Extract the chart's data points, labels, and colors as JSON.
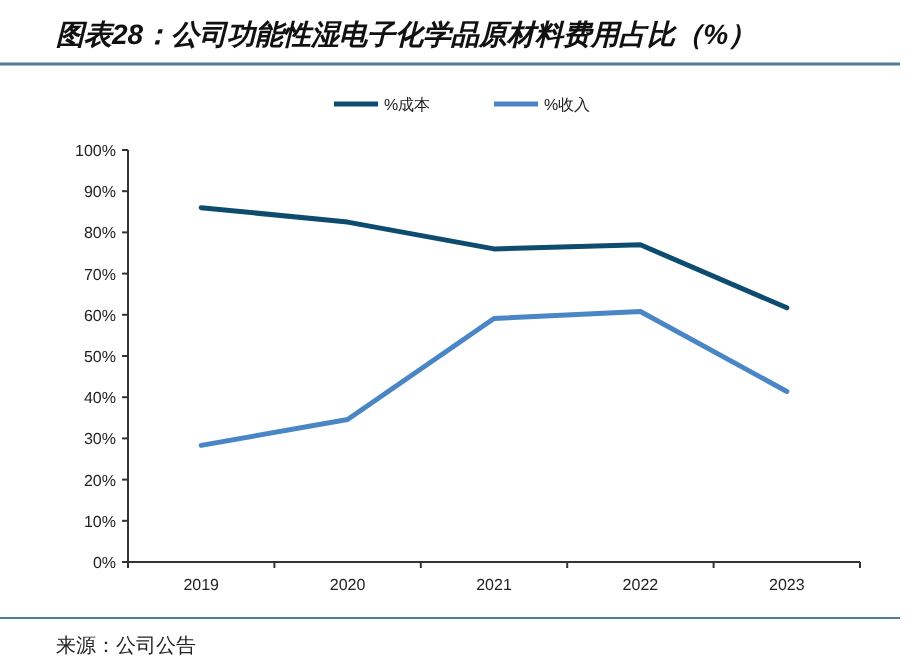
{
  "chart_data": {
    "type": "line",
    "title": "图表28：公司功能性湿电子化学品原材料费用占比（%）",
    "annotations": [
      "来源：公司公告"
    ],
    "categories": [
      "2019",
      "2020",
      "2021",
      "2022",
      "2023"
    ],
    "series": [
      {
        "name": "%成本",
        "color": "#0e4c6f",
        "values": [
          86,
          82.5,
          76,
          77,
          61.7
        ]
      },
      {
        "name": "%收入",
        "color": "#4a86c5",
        "values": [
          28.3,
          34.6,
          59.1,
          60.8,
          41.4
        ]
      }
    ],
    "ylim": [
      0,
      100
    ],
    "yticks": [
      {
        "value": 0,
        "label": "0%"
      },
      {
        "value": 10,
        "label": "10%"
      },
      {
        "value": 20,
        "label": "20%"
      },
      {
        "value": 30,
        "label": "30%"
      },
      {
        "value": 40,
        "label": "40%"
      },
      {
        "value": 50,
        "label": "50%"
      },
      {
        "value": 60,
        "label": "60%"
      },
      {
        "value": 70,
        "label": "70%"
      },
      {
        "value": 80,
        "label": "80%"
      },
      {
        "value": 90,
        "label": "90%"
      },
      {
        "value": 100,
        "label": "100%"
      }
    ],
    "legend": "top",
    "grid": false,
    "marker": "none",
    "line_style": "solid"
  }
}
